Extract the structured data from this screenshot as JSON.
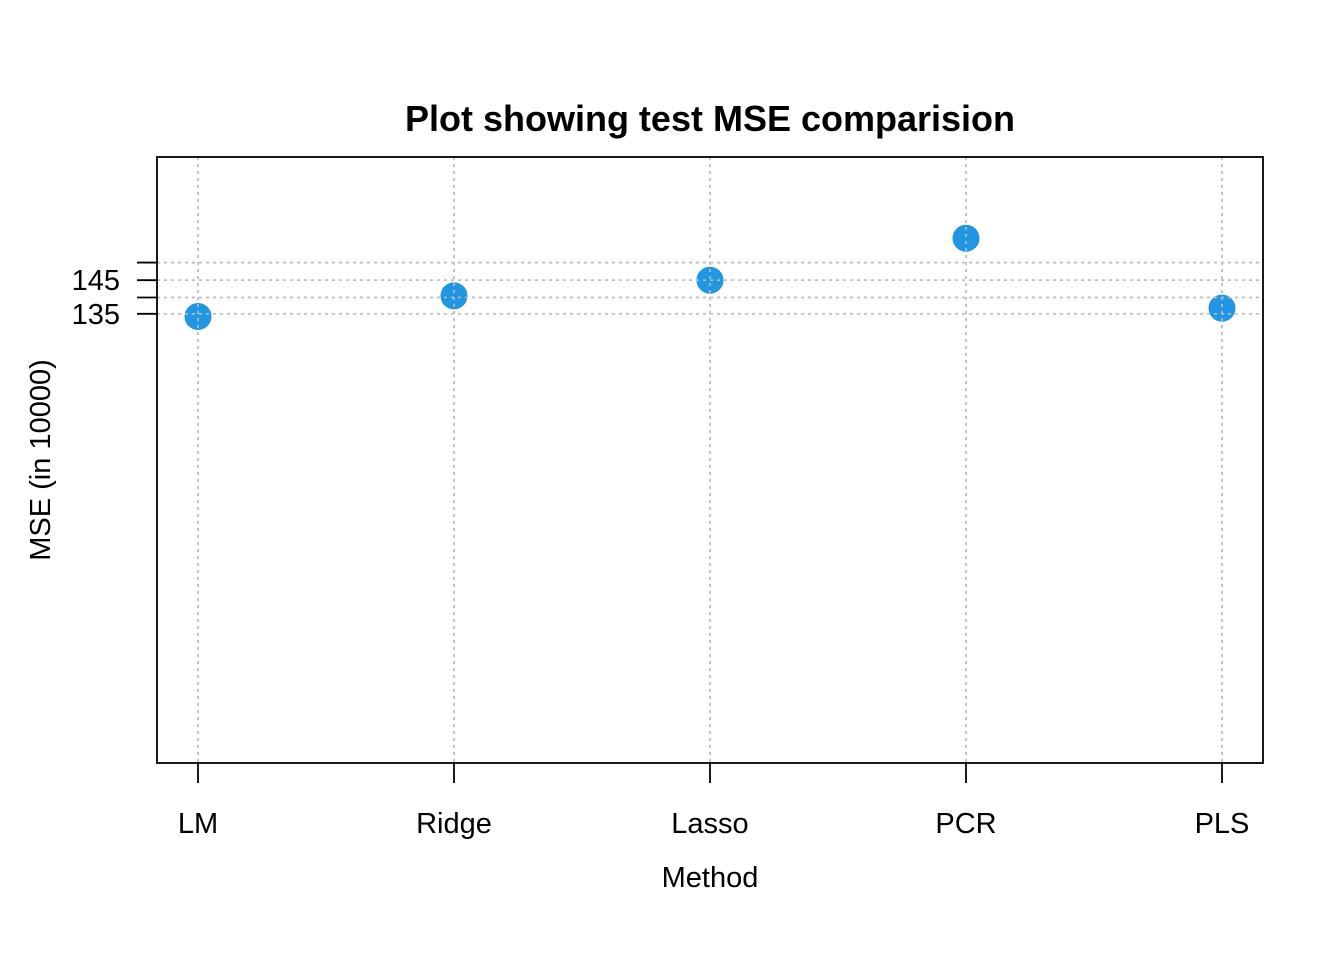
{
  "chart_data": {
    "type": "scatter",
    "title": "Plot showing test MSE comparision",
    "xlabel": "Method",
    "ylabel": "MSE (in 10000)",
    "categories": [
      "LM",
      "Ridge",
      "Lasso",
      "PCR",
      "PLS"
    ],
    "values": [
      134.1,
      140.3,
      145.0,
      157.6,
      136.6
    ],
    "y_ticks": [
      {
        "value": 134.9,
        "label": "135"
      },
      {
        "value": 139.8,
        "label": ""
      },
      {
        "value": 145.0,
        "label": "145"
      },
      {
        "value": 150.3,
        "label": ""
      }
    ],
    "ylim": [
      0,
      182
    ],
    "grid": true,
    "point_color": "#2196E3",
    "grid_color": "#BEBEBE",
    "axis_color": "#000000"
  }
}
